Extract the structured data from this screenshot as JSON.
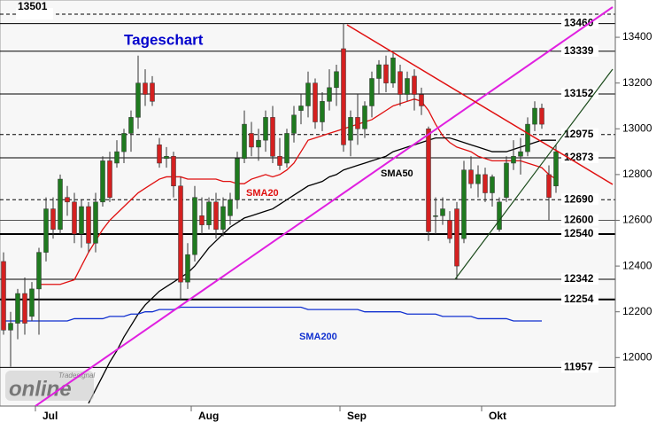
{
  "chart_data": {
    "type": "candlestick",
    "title": "Tageschart",
    "up_color": "#1f7a1f",
    "down_color": "#d42020",
    "ylim": [
      11788,
      13563
    ],
    "yticks": [
      12000,
      12200,
      12400,
      12600,
      12800,
      13000,
      13200,
      13400
    ],
    "categories": [
      null,
      null,
      null,
      null,
      null,
      "Jul",
      null,
      null,
      null,
      null,
      null,
      null,
      null,
      null,
      null,
      null,
      null,
      null,
      null,
      null,
      null,
      null,
      null,
      null,
      null,
      null,
      null,
      "Aug",
      null,
      null,
      null,
      null,
      null,
      null,
      null,
      null,
      null,
      null,
      null,
      null,
      null,
      null,
      null,
      null,
      null,
      null,
      null,
      null,
      "Sep",
      null,
      null,
      null,
      null,
      null,
      null,
      null,
      null,
      null,
      null,
      null,
      null,
      null,
      null,
      null,
      null,
      null,
      null,
      null,
      "Okt",
      null,
      null,
      null,
      null,
      null,
      null,
      null,
      null,
      null,
      null
    ],
    "ohlc": [
      [
        12420,
        12460,
        12100,
        12120
      ],
      [
        12120,
        12200,
        11960,
        12150
      ],
      [
        12150,
        12300,
        12080,
        12280
      ],
      [
        12280,
        12350,
        12100,
        12150
      ],
      [
        12180,
        12330,
        12160,
        12300
      ],
      [
        12300,
        12480,
        12100,
        12460
      ],
      [
        12460,
        12700,
        12420,
        12650
      ],
      [
        12650,
        12700,
        12520,
        12560
      ],
      [
        12560,
        12800,
        12540,
        12780
      ],
      [
        12700,
        12750,
        12620,
        12680
      ],
      [
        12680,
        12720,
        12500,
        12540
      ],
      [
        12540,
        12690,
        12480,
        12660
      ],
      [
        12660,
        12680,
        12460,
        12500
      ],
      [
        12500,
        12720,
        12460,
        12680
      ],
      [
        12680,
        12880,
        12660,
        12860
      ],
      [
        12860,
        12900,
        12680,
        12700
      ],
      [
        12850,
        12950,
        12830,
        12900
      ],
      [
        12900,
        13000,
        12850,
        12980
      ],
      [
        12980,
        13080,
        12900,
        13050
      ],
      [
        13050,
        13320,
        13000,
        13200
      ],
      [
        13200,
        13260,
        13100,
        13150
      ],
      [
        13200,
        13230,
        13100,
        13120
      ],
      [
        12930,
        12960,
        12830,
        12850
      ],
      [
        12870,
        12920,
        12830,
        12880
      ],
      [
        12880,
        12900,
        12700,
        12750
      ],
      [
        12750,
        12790,
        12250,
        12330
      ],
      [
        12330,
        12500,
        12300,
        12450
      ],
      [
        12450,
        12750,
        12420,
        12700
      ],
      [
        12620,
        12700,
        12540,
        12580
      ],
      [
        12580,
        12700,
        12560,
        12680
      ],
      [
        12680,
        12720,
        12520,
        12560
      ],
      [
        12560,
        12700,
        12530,
        12660
      ],
      [
        12620,
        12720,
        12580,
        12690
      ],
      [
        12690,
        12900,
        12650,
        12870
      ],
      [
        12870,
        13080,
        12850,
        13020
      ],
      [
        12980,
        13030,
        12880,
        12920
      ],
      [
        12920,
        13000,
        12860,
        12950
      ],
      [
        12950,
        13080,
        12900,
        13050
      ],
      [
        13050,
        13100,
        12850,
        12880
      ],
      [
        12880,
        12960,
        12820,
        12840
      ],
      [
        12850,
        13000,
        12830,
        12980
      ],
      [
        12980,
        13100,
        12940,
        13060
      ],
      [
        13080,
        13150,
        13020,
        13100
      ],
      [
        13100,
        13250,
        13050,
        13200
      ],
      [
        13200,
        13220,
        13000,
        13030
      ],
      [
        13030,
        13160,
        12990,
        13120
      ],
      [
        13120,
        13260,
        13080,
        13180
      ],
      [
        13180,
        13280,
        13100,
        13250
      ],
      [
        13350,
        13460,
        12900,
        12930
      ],
      [
        12950,
        13080,
        12880,
        13050
      ],
      [
        13050,
        13150,
        12930,
        13000
      ],
      [
        13000,
        13120,
        12960,
        13100
      ],
      [
        13100,
        13250,
        13050,
        13220
      ],
      [
        13220,
        13300,
        13150,
        13280
      ],
      [
        13280,
        13320,
        13160,
        13200
      ],
      [
        13200,
        13330,
        13180,
        13310
      ],
      [
        13250,
        13280,
        13100,
        13150
      ],
      [
        13150,
        13250,
        13120,
        13220
      ],
      [
        13230,
        13260,
        13080,
        13150
      ],
      [
        13150,
        13180,
        13060,
        13100
      ],
      [
        13000,
        13010,
        12510,
        12550
      ],
      [
        12620,
        12700,
        12540,
        12620
      ],
      [
        12620,
        12700,
        12580,
        12650
      ],
      [
        12600,
        12640,
        12500,
        12520
      ],
      [
        12650,
        12680,
        12340,
        12400
      ],
      [
        12520,
        12860,
        12500,
        12820
      ],
      [
        12820,
        12880,
        12740,
        12760
      ],
      [
        12760,
        12840,
        12700,
        12800
      ],
      [
        12800,
        12830,
        12680,
        12720
      ],
      [
        12720,
        12800,
        12660,
        12790
      ],
      [
        12560,
        12700,
        12550,
        12680
      ],
      [
        12700,
        12880,
        12680,
        12850
      ],
      [
        12850,
        12950,
        12820,
        12880
      ],
      [
        12880,
        12960,
        12800,
        12900
      ],
      [
        12900,
        13050,
        12880,
        13020
      ],
      [
        13020,
        13120,
        12990,
        13090
      ],
      [
        13090,
        13110,
        13000,
        13020
      ],
      [
        12800,
        12840,
        12600,
        12700
      ],
      [
        12750,
        12930,
        12720,
        12900
      ]
    ],
    "series": [
      {
        "name": "SMA20",
        "color": "#e01010",
        "values": [
          null,
          null,
          null,
          null,
          null,
          12320,
          12320,
          12320,
          12320,
          12330,
          12340,
          12400,
          12460,
          12510,
          12560,
          12600,
          12630,
          12660,
          12690,
          12720,
          12740,
          12760,
          12780,
          12790,
          12790,
          12790,
          12780,
          12780,
          12780,
          12780,
          12780,
          12770,
          12770,
          12760,
          12760,
          12780,
          12790,
          12800,
          12790,
          12800,
          12820,
          12850,
          12900,
          12950,
          12960,
          12970,
          12980,
          12990,
          13000,
          13010,
          13020,
          13030,
          13040,
          13060,
          13080,
          13100,
          13110,
          13120,
          13130,
          13120,
          13080,
          13020,
          12970,
          12940,
          12920,
          12910,
          12900,
          12880,
          12870,
          12860,
          12860,
          12860,
          12860,
          12860,
          12850,
          12840,
          12830,
          12800,
          12780
        ]
      },
      {
        "name": "SMA50",
        "color": "#000000",
        "values": [
          null,
          null,
          null,
          null,
          null,
          null,
          null,
          null,
          null,
          null,
          null,
          null,
          11800,
          11860,
          11920,
          11980,
          12030,
          12090,
          12140,
          12190,
          12230,
          12260,
          12290,
          12310,
          12330,
          12350,
          12370,
          12400,
          12440,
          12480,
          12510,
          12540,
          12570,
          12590,
          12610,
          12620,
          12630,
          12640,
          12650,
          12670,
          12690,
          12710,
          12730,
          12750,
          12760,
          12770,
          12790,
          12800,
          12820,
          12830,
          12840,
          12850,
          12860,
          12870,
          12880,
          12900,
          12910,
          12920,
          12930,
          12940,
          12950,
          12960,
          12960,
          12960,
          12950,
          12940,
          12930,
          12920,
          12910,
          12900,
          12900,
          12900,
          12910,
          12920,
          12930,
          12940,
          12950,
          12950,
          12950
        ]
      },
      {
        "name": "SMA200",
        "color": "#1030d0",
        "values": [
          12160,
          12160,
          12160,
          12160,
          12160,
          12160,
          12160,
          12160,
          12160,
          12160,
          12170,
          12170,
          12170,
          12170,
          12170,
          12180,
          12180,
          12180,
          12190,
          12190,
          12200,
          12200,
          12210,
          12210,
          12210,
          12220,
          12220,
          12220,
          12220,
          12220,
          12220,
          12220,
          12220,
          12220,
          12220,
          12220,
          12220,
          12220,
          12220,
          12220,
          12220,
          12220,
          12220,
          12210,
          12210,
          12210,
          12210,
          12210,
          12210,
          12210,
          12210,
          12200,
          12200,
          12200,
          12200,
          12200,
          12200,
          12190,
          12190,
          12190,
          12190,
          12190,
          12180,
          12180,
          12180,
          12180,
          12180,
          12170,
          12170,
          12170,
          12170,
          12170,
          12160,
          12160,
          12160,
          12160,
          12160,
          null,
          null
        ]
      }
    ],
    "levels": [
      {
        "value": 13501,
        "style": "dashed"
      },
      {
        "value": 13460,
        "style": "solid"
      },
      {
        "value": 13339,
        "style": "solid"
      },
      {
        "value": 13152,
        "style": "solid"
      },
      {
        "value": 12975,
        "style": "dashed"
      },
      {
        "value": 12873,
        "style": "solid"
      },
      {
        "value": 12690,
        "style": "dashed"
      },
      {
        "value": 12600,
        "style": "solid"
      },
      {
        "value": 12540,
        "style": "solid"
      },
      {
        "value": 12342,
        "style": "solid"
      },
      {
        "value": 12254,
        "style": "solid"
      },
      {
        "value": 11957,
        "style": "solid"
      }
    ],
    "logo": {
      "small": "Tradesignal",
      "main": "online"
    }
  }
}
